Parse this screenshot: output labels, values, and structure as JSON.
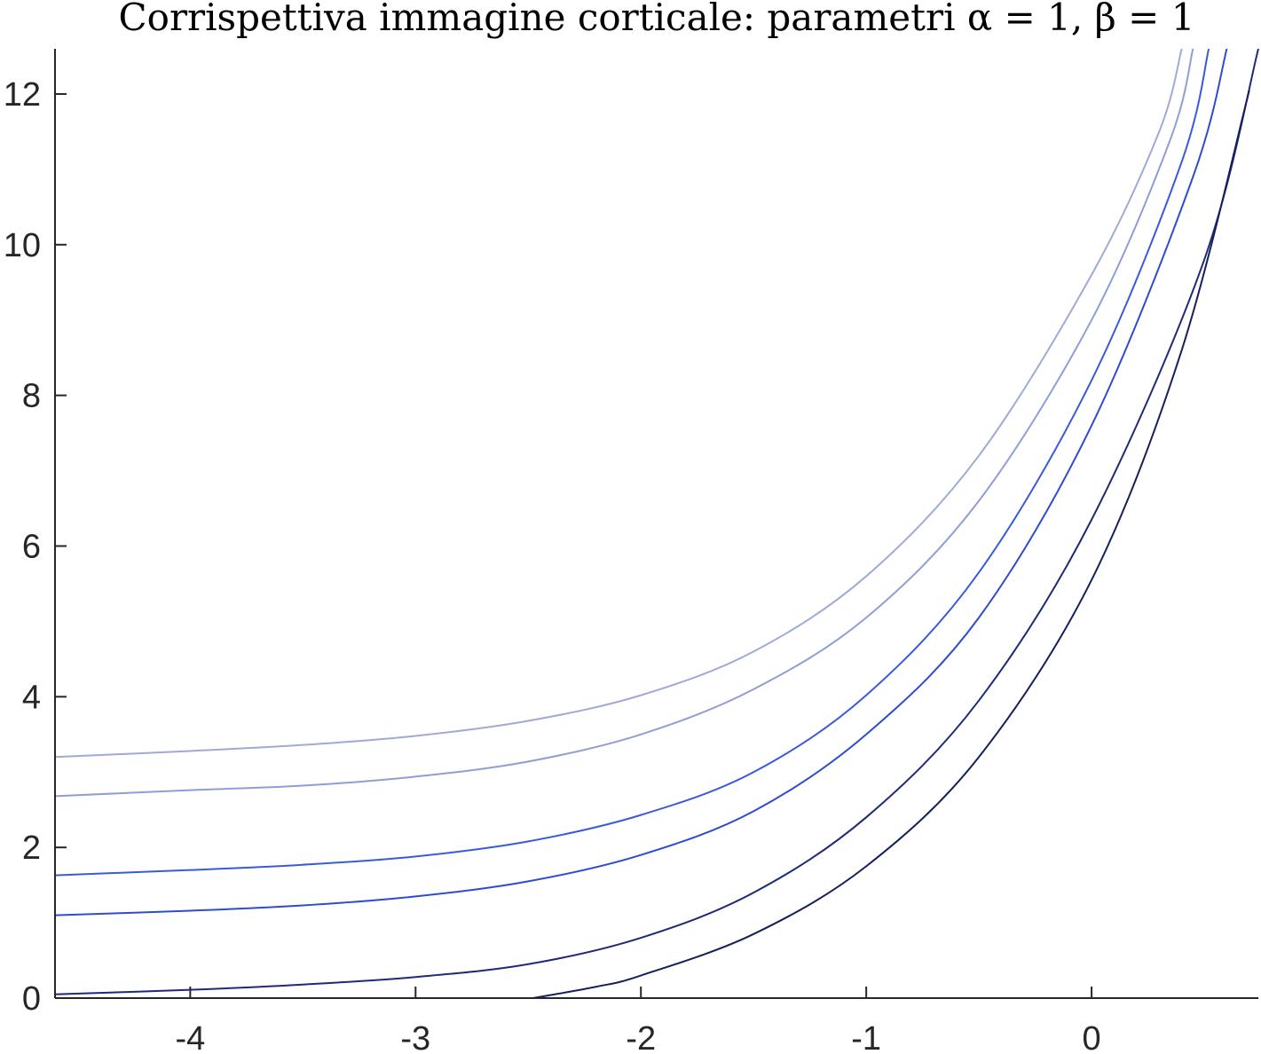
{
  "chart_data": {
    "type": "line",
    "title": "Corrispettiva immagine corticale: parametri α = 1,  β = 1",
    "xlabel": "",
    "ylabel": "",
    "xlim": [
      -4.6,
      0.74
    ],
    "ylim": [
      0,
      12.6
    ],
    "x_ticks": [
      -4,
      -3,
      -2,
      -1,
      0
    ],
    "y_ticks": [
      0,
      2,
      4,
      6,
      8,
      10,
      12
    ],
    "x_tick_labels": [
      "-4",
      "-3",
      "-2",
      "-1",
      "0"
    ],
    "y_tick_labels": [
      "0",
      "2",
      "4",
      "6",
      "8",
      "10",
      "12"
    ],
    "grid": false,
    "legend": false,
    "series": [
      {
        "color": "#9eaad8",
        "x": [
          -4.6,
          -4.0,
          -3.5,
          -3.0,
          -2.5,
          -2.0,
          -1.5,
          -1.0,
          -0.5,
          0.0,
          0.3,
          0.4
        ],
        "y": [
          3.2,
          3.28,
          3.36,
          3.48,
          3.68,
          4.02,
          4.6,
          5.6,
          7.2,
          9.6,
          11.5,
          12.6
        ]
      },
      {
        "color": "#8f9ed6",
        "x": [
          -4.6,
          -4.0,
          -3.5,
          -3.0,
          -2.5,
          -2.0,
          -1.5,
          -1.0,
          -0.5,
          0.0,
          0.35,
          0.45
        ],
        "y": [
          2.68,
          2.76,
          2.82,
          2.94,
          3.14,
          3.5,
          4.1,
          5.05,
          6.6,
          9.0,
          11.4,
          12.6
        ]
      },
      {
        "color": "#3a5bd9",
        "x": [
          -4.6,
          -4.0,
          -3.5,
          -3.0,
          -2.5,
          -2.0,
          -1.5,
          -1.0,
          -0.5,
          0.0,
          0.4,
          0.52
        ],
        "y": [
          1.63,
          1.7,
          1.77,
          1.88,
          2.08,
          2.43,
          3.0,
          4.02,
          5.65,
          8.2,
          11.1,
          12.6
        ]
      },
      {
        "color": "#2d4ccf",
        "x": [
          -4.6,
          -4.0,
          -3.5,
          -3.0,
          -2.5,
          -2.0,
          -1.5,
          -1.0,
          -0.5,
          0.0,
          0.45,
          0.6
        ],
        "y": [
          1.1,
          1.16,
          1.23,
          1.35,
          1.55,
          1.9,
          2.48,
          3.5,
          5.05,
          7.6,
          10.9,
          12.6
        ]
      },
      {
        "color": "#1e2a78",
        "x": [
          -4.6,
          -4.0,
          -3.5,
          -3.0,
          -2.5,
          -2.0,
          -1.5,
          -1.0,
          -0.5,
          0.0,
          0.5,
          0.74
        ],
        "y": [
          0.05,
          0.11,
          0.18,
          0.28,
          0.45,
          0.8,
          1.4,
          2.4,
          3.95,
          6.35,
          9.8,
          12.6
        ]
      },
      {
        "color": "#15205e",
        "x": [
          -2.48,
          -2.2,
          -2.0,
          -1.5,
          -1.0,
          -0.5,
          0.0,
          0.4,
          0.7
        ],
        "y": [
          0.0,
          0.15,
          0.3,
          0.85,
          1.75,
          3.2,
          5.55,
          8.6,
          12.05
        ]
      }
    ]
  }
}
